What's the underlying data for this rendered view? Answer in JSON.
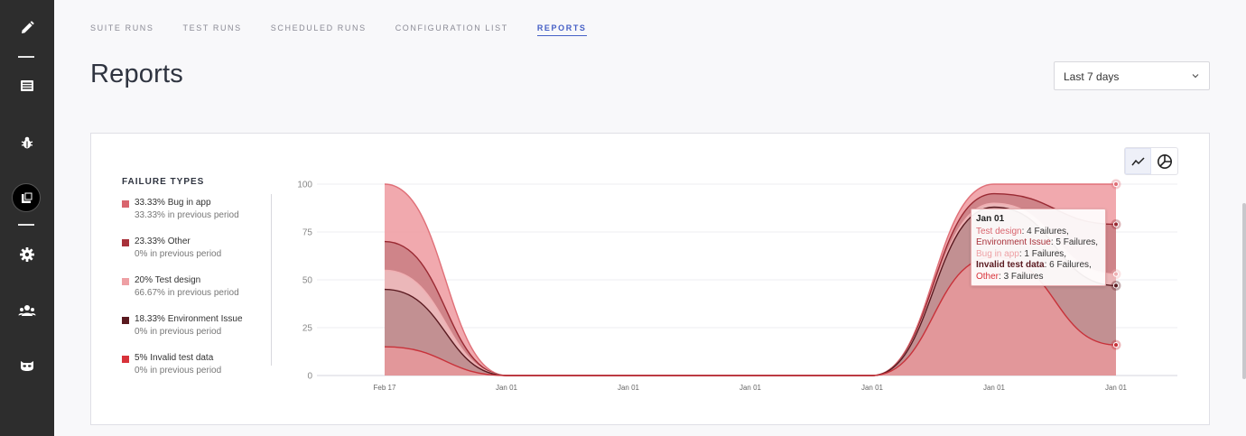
{
  "nav": {
    "tabs": [
      {
        "label": "SUITE RUNS",
        "active": false
      },
      {
        "label": "TEST RUNS",
        "active": false
      },
      {
        "label": "SCHEDULED RUNS",
        "active": false
      },
      {
        "label": "CONFIGURATION LIST",
        "active": false
      },
      {
        "label": "REPORTS",
        "active": true
      }
    ]
  },
  "sidebar": {
    "icons": [
      "pencil-icon",
      "list-icon",
      "bug-icon",
      "copy-icon",
      "gear-icon",
      "team-icon",
      "mask-icon"
    ]
  },
  "page": {
    "title": "Reports",
    "period_select": "Last 7 days"
  },
  "legend": {
    "title": "FAILURE TYPES",
    "items": [
      {
        "main": "33.33% Bug in app",
        "sub": "33.33% in previous period",
        "color": "#d9656e"
      },
      {
        "main": "23.33% Other",
        "sub": "0% in previous period",
        "color": "#a8313a"
      },
      {
        "main": "20% Test design",
        "sub": "66.67% in previous period",
        "color": "#eea0a4"
      },
      {
        "main": "18.33% Environment Issue",
        "sub": "0% in previous period",
        "color": "#5a1a20"
      },
      {
        "main": "5% Invalid test data",
        "sub": "0% in previous period",
        "color": "#d8323a"
      }
    ]
  },
  "chart_toggle": {
    "line_icon": "line-chart-icon",
    "pie_icon": "pie-chart-icon",
    "active": "line"
  },
  "tooltip": {
    "title": "Jan 01",
    "rows": [
      {
        "label": "Test design",
        "value": ": 4 Failures,",
        "color": "#d9656e",
        "bold": false
      },
      {
        "label": "Environment Issue",
        "value": ": 5 Failures,",
        "color": "#a8313a",
        "bold": false
      },
      {
        "label": "Bug in app",
        "value": ": 1 Failures,",
        "color": "#eea0a4",
        "bold": false
      },
      {
        "label": "Invalid test data",
        "value": ": 6 Failures,",
        "color": "#5a1a20",
        "bold": true
      },
      {
        "label": "Other",
        "value": ": 3 Failures",
        "color": "#d8323a",
        "bold": false
      }
    ]
  },
  "chart_data": {
    "type": "area",
    "x": [
      "Feb 17",
      "Jan 01",
      "Jan 01",
      "Jan 01",
      "Jan 01",
      "Jan 01",
      "Jan 01"
    ],
    "ylim": [
      0,
      100
    ],
    "yticks": [
      0,
      25,
      50,
      75,
      100
    ],
    "grid": true,
    "series": [
      {
        "values": [
          100,
          0,
          0,
          0,
          0,
          100,
          100
        ],
        "color": "#e07078",
        "fill": "#ef9aa0"
      },
      {
        "values": [
          70,
          0,
          0,
          0,
          0,
          95,
          79
        ],
        "color": "#9a2a33",
        "fill": "#c3787c"
      },
      {
        "values": [
          55,
          0,
          0,
          0,
          0,
          90,
          53
        ],
        "color": "#f0b0b3",
        "fill": "#f4c8ca"
      },
      {
        "values": [
          45,
          0,
          0,
          0,
          0,
          88,
          47
        ],
        "color": "#5a1a20",
        "fill": "#b48386"
      },
      {
        "values": [
          15,
          0,
          0,
          0,
          0,
          62,
          16
        ],
        "color": "#c8323a",
        "fill": "#ec9a9c"
      }
    ]
  }
}
